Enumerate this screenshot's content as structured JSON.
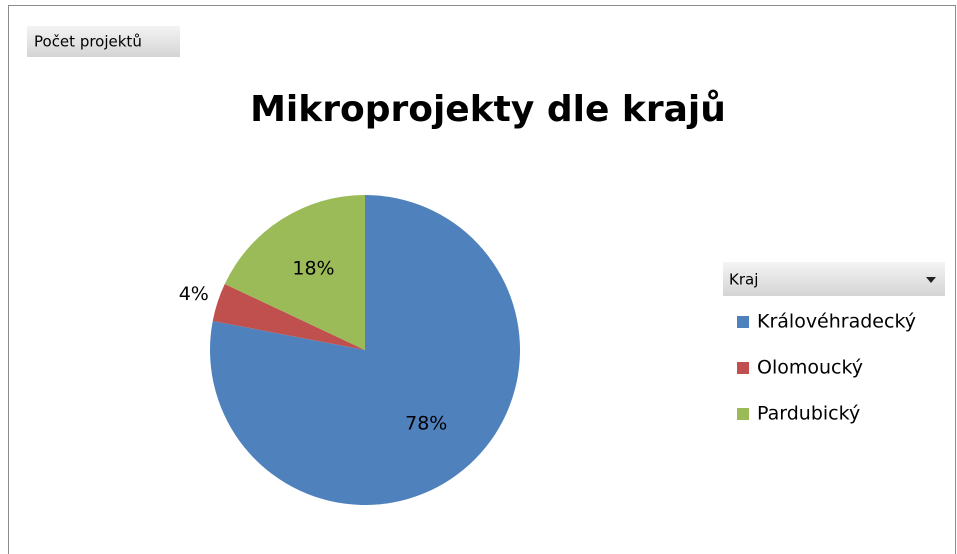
{
  "chart_data": {
    "type": "pie",
    "title": "Mikroprojekty dle krajů",
    "field_button": "Počet projektů",
    "legend_title": "Kraj",
    "categories": [
      "Královéhradecký",
      "Olomoucký",
      "Pardubický"
    ],
    "values": [
      78,
      4,
      18
    ],
    "value_labels": [
      "78%",
      "4%",
      "18%"
    ],
    "colors": [
      "#4f81bd",
      "#c0504d",
      "#9bbb59"
    ]
  }
}
